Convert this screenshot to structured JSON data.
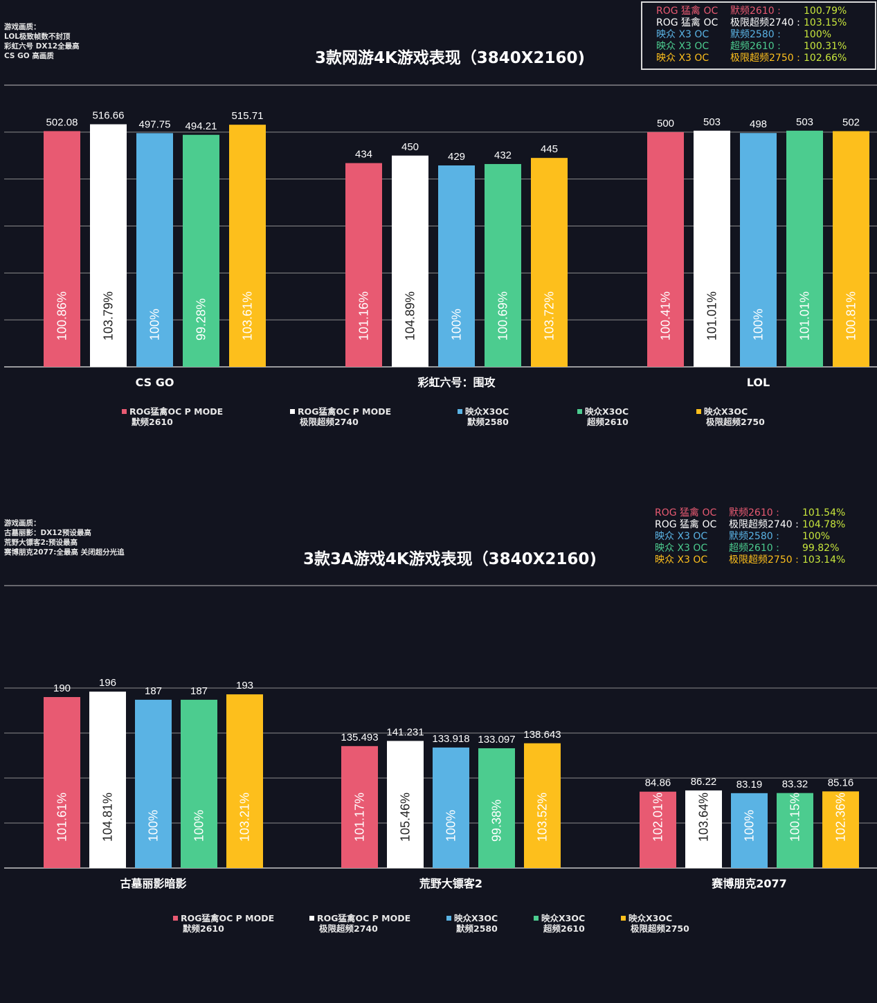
{
  "colors": {
    "series": [
      "#e85a72",
      "#ffffff",
      "#5ab3e4",
      "#4ccc8f",
      "#fdbf1c"
    ],
    "background": "#12141f",
    "grid": "#9a9a9a"
  },
  "legend": [
    {
      "line1": "ROG猛禽OC P MODE",
      "line2": "默频2610"
    },
    {
      "line1": "ROG猛禽OC P MODE",
      "line2": "极限超频2740"
    },
    {
      "line1": "映众X3OC",
      "line2": "默频2580"
    },
    {
      "line1": "映众X3OC",
      "line2": "超频2610"
    },
    {
      "line1": "映众X3OC",
      "line2": "极限超频2750"
    }
  ],
  "panels": [
    {
      "settings": "游戏画质：\nLOL极致帧数不封顶\n彩虹六号 DX12全最高\nCS GO 高画质",
      "title": "3款网游4K游戏表现（3840X2160)",
      "summary": [
        {
          "name": "ROG 猛禽 OC",
          "mode": "默频2610 :",
          "pct": "100.79%"
        },
        {
          "name": "ROG 猛禽 OC",
          "mode": "极限超频2740 :",
          "pct": "103.15%"
        },
        {
          "name": "映众 X3 OC",
          "mode": "默频2580 :",
          "pct": "100%"
        },
        {
          "name": "映众 X3 OC",
          "mode": "超频2610 :",
          "pct": "100.31%"
        },
        {
          "name": "映众 X3 OC",
          "mode": "极限超频2750 :",
          "pct": "102.66%"
        }
      ]
    },
    {
      "settings": "游戏画质：\n古墓丽影：DX12预设最高\n荒野大镖客2:预设最高\n赛博朋克2077:全最高 关闭超分光追",
      "title": "3款3A游戏4K游戏表现（3840X2160)",
      "summary": [
        {
          "name": "ROG 猛禽 OC",
          "mode": "默频2610 :",
          "pct": "101.54%"
        },
        {
          "name": "ROG 猛禽 OC",
          "mode": "极限超频2740 :",
          "pct": "104.78%"
        },
        {
          "name": "映众 X3 OC",
          "mode": "默频2580 :",
          "pct": "100%"
        },
        {
          "name": "映众 X3 OC",
          "mode": "超频2610 :",
          "pct": "99.82%"
        },
        {
          "name": "映众 X3 OC",
          "mode": "极限超频2750 :",
          "pct": "103.14%"
        }
      ]
    }
  ],
  "chart_data": [
    {
      "type": "bar",
      "title": "3款网游4K游戏表现（3840X2160)",
      "categories": [
        "CS GO",
        "彩虹六号：围攻",
        "LOL"
      ],
      "series": [
        {
          "name": "ROG猛禽OC P MODE 默频2610",
          "values": [
            502.08,
            434,
            500
          ],
          "labels": [
            "502.08",
            "434",
            "500"
          ],
          "percent": [
            "100.86%",
            "101.16%",
            "100.41%"
          ]
        },
        {
          "name": "ROG猛禽OC P MODE 极限超频2740",
          "values": [
            516.66,
            450,
            503
          ],
          "labels": [
            "516.66",
            "450",
            "503"
          ],
          "percent": [
            "103.79%",
            "104.89%",
            "101.01%"
          ]
        },
        {
          "name": "映众X3OC 默频2580",
          "values": [
            497.75,
            429,
            498
          ],
          "labels": [
            "497.75",
            "429",
            "498"
          ],
          "percent": [
            "100%",
            "100%",
            "100%"
          ]
        },
        {
          "name": "映众X3OC 超频2610",
          "values": [
            494.21,
            432,
            503
          ],
          "labels": [
            "494.21",
            "432",
            "503"
          ],
          "percent": [
            "99.28%",
            "100.69%",
            "101.01%"
          ]
        },
        {
          "name": "映众X3OC 极限超频2750",
          "values": [
            515.71,
            445,
            502
          ],
          "labels": [
            "515.71",
            "445",
            "502"
          ],
          "percent": [
            "103.61%",
            "103.72%",
            "100.81%"
          ]
        }
      ],
      "ylim": [
        0,
        600
      ],
      "gridlines": 6,
      "grid": true,
      "legend_position": "bottom"
    },
    {
      "type": "bar",
      "title": "3款3A游戏4K游戏表现（3840X2160)",
      "categories": [
        "古墓丽影暗影",
        "荒野大镖客2",
        "赛博朋克2077"
      ],
      "series": [
        {
          "name": "ROG猛禽OC P MODE 默频2610",
          "values": [
            190,
            135.493,
            84.86
          ],
          "labels": [
            "190",
            "135.493",
            "84.86"
          ],
          "percent": [
            "101.61%",
            "101.17%",
            "102.01%"
          ]
        },
        {
          "name": "ROG猛禽OC P MODE 极限超频2740",
          "values": [
            196,
            141.231,
            86.22
          ],
          "labels": [
            "196",
            "141.231",
            "86.22"
          ],
          "percent": [
            "104.81%",
            "105.46%",
            "103.64%"
          ]
        },
        {
          "name": "映众X3OC 默频2580",
          "values": [
            187,
            133.918,
            83.19
          ],
          "labels": [
            "187",
            "133.918",
            "83.19"
          ],
          "percent": [
            "100%",
            "100%",
            "100%"
          ]
        },
        {
          "name": "映众X3OC 超频2610",
          "values": [
            187,
            133.097,
            83.32
          ],
          "labels": [
            "187",
            "133.097",
            "83.32"
          ],
          "percent": [
            "100%",
            "99.38%",
            "100.15%"
          ]
        },
        {
          "name": "映众X3OC 极限超频2750",
          "values": [
            193,
            138.643,
            85.16
          ],
          "labels": [
            "193",
            "138.643",
            "85.16"
          ],
          "percent": [
            "103.21%",
            "103.52%",
            "102.36%"
          ]
        }
      ],
      "ylim": [
        0,
        250
      ],
      "gridlines": 5,
      "grid": true,
      "legend_position": "bottom"
    }
  ]
}
